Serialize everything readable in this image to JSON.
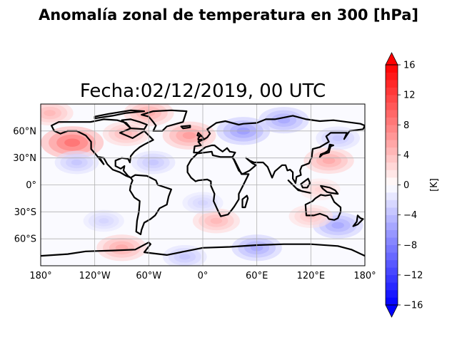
{
  "suptitle": "Anomalía zonal de temperatura en 300 [hPa]",
  "subtitle": "Fecha:02/12/2019, 00 UTC",
  "chart_data": {
    "type": "heatmap",
    "projection": "PlateCarree",
    "variable": "zonal temperature anomaly",
    "xlim": [
      -180,
      180
    ],
    "ylim": [
      -90,
      90
    ],
    "x_ticks": [
      {
        "value": -180,
        "label": "180°"
      },
      {
        "value": -120,
        "label": "120°W"
      },
      {
        "value": -60,
        "label": "60°W"
      },
      {
        "value": 0,
        "label": "0°"
      },
      {
        "value": 60,
        "label": "60°E"
      },
      {
        "value": 120,
        "label": "120°E"
      },
      {
        "value": 180,
        "label": "180°"
      }
    ],
    "y_ticks": [
      {
        "value": 60,
        "label": "60°N"
      },
      {
        "value": 30,
        "label": "30°N"
      },
      {
        "value": 0,
        "label": "0°"
      },
      {
        "value": -30,
        "label": "30°S"
      },
      {
        "value": -60,
        "label": "60°S"
      }
    ],
    "grid": true,
    "coastlines": true,
    "colormap": "bwr",
    "colorbar": {
      "label": "[K]",
      "range": [
        -16,
        16
      ],
      "extend": "both",
      "tick_values": [
        -16,
        -12,
        -8,
        -4,
        0,
        4,
        8,
        12,
        16
      ],
      "tick_labels": [
        "−16",
        "−12",
        "−8",
        "−4",
        "0",
        "4",
        "8",
        "12",
        "16"
      ],
      "levels": 32
    },
    "anomaly_features": [
      {
        "lon": -145,
        "lat": 47,
        "value": 10
      },
      {
        "lon": -85,
        "lat": 57,
        "value": 5
      },
      {
        "lon": -15,
        "lat": 55,
        "value": 7
      },
      {
        "lon": -60,
        "lat": 80,
        "value": 6
      },
      {
        "lon": 140,
        "lat": 27,
        "value": 6
      },
      {
        "lon": 150,
        "lat": 52,
        "value": -4
      },
      {
        "lon": 45,
        "lat": 60,
        "value": -7
      },
      {
        "lon": 90,
        "lat": 72,
        "value": -6
      },
      {
        "lon": -140,
        "lat": 25,
        "value": -4
      },
      {
        "lon": -55,
        "lat": 25,
        "value": -4
      },
      {
        "lon": 15,
        "lat": -40,
        "value": 5
      },
      {
        "lon": -90,
        "lat": -70,
        "value": 6
      },
      {
        "lon": 60,
        "lat": -70,
        "value": -6
      },
      {
        "lon": 150,
        "lat": -45,
        "value": -6
      },
      {
        "lon": 120,
        "lat": -35,
        "value": 4
      },
      {
        "lon": -20,
        "lat": -80,
        "value": -4
      },
      {
        "lon": 130,
        "lat": -5,
        "value": 3
      },
      {
        "lon": -170,
        "lat": 80,
        "value": 5
      },
      {
        "lon": 0,
        "lat": -20,
        "value": -3
      },
      {
        "lon": -110,
        "lat": -40,
        "value": -3
      }
    ]
  }
}
